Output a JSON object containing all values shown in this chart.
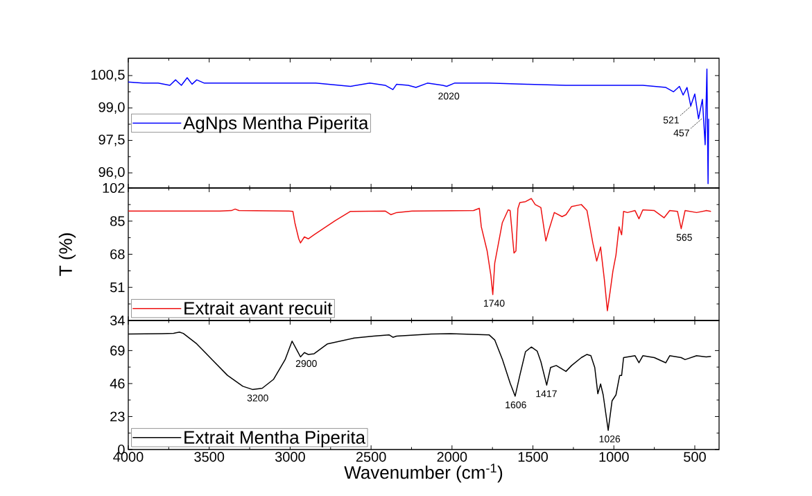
{
  "chart_data": [
    {
      "type": "line",
      "tick_labels": "y",
      "legend": "left",
      "xlim": [
        4000,
        350
      ],
      "xticks": [
        4000,
        3500,
        3000,
        2500,
        2000,
        1500,
        1000,
        500
      ],
      "ylim": [
        95.3,
        101.3
      ],
      "yticks": [
        {
          "value": 96.0,
          "label": "96,0"
        },
        {
          "value": 97.5,
          "label": "97,5"
        },
        {
          "value": 99.0,
          "label": "99,0"
        },
        {
          "value": 100.5,
          "label": "100,5"
        }
      ],
      "x": [
        4000,
        3910,
        3815,
        3743,
        3708,
        3672,
        3636,
        3606,
        3577,
        3530,
        3316,
        3078,
        2841,
        2627,
        2508,
        2413,
        2365,
        2342,
        2270,
        2223,
        2152,
        2057,
        2033,
        1985,
        1771,
        1534,
        1296,
        1059,
        821,
        679,
        631,
        595,
        572,
        548,
        525,
        500,
        477,
        453,
        436,
        425,
        418,
        414
      ],
      "series": [
        {
          "name": "AgNps Mentha Piperita",
          "color": "#0000ff",
          "values": [
            100.2,
            100.15,
            100.15,
            100.05,
            100.3,
            100.05,
            100.4,
            100.1,
            100.3,
            100.15,
            100.15,
            100.15,
            100.15,
            100.0,
            100.15,
            100.05,
            99.85,
            100.1,
            100.05,
            99.95,
            100.15,
            100.05,
            100.0,
            100.15,
            100.15,
            100.1,
            100.05,
            100.05,
            100.05,
            99.95,
            99.75,
            100.0,
            99.6,
            99.95,
            99.1,
            99.65,
            98.5,
            99.4,
            97.3,
            100.8,
            95.5,
            98.5
          ]
        }
      ],
      "annotations": [
        {
          "text": "2020",
          "x": 2020,
          "y": 99.95
        },
        {
          "text": "521",
          "x": 521,
          "y": 99.1
        },
        {
          "text": "457",
          "x": 457,
          "y": 98.5
        }
      ]
    },
    {
      "type": "line",
      "tick_labels": "y",
      "legend": "bottom left",
      "ylabel": "T (%)",
      "xlim": [
        4000,
        350
      ],
      "xticks": [
        4000,
        3500,
        3000,
        2500,
        2000,
        1500,
        1000,
        500
      ],
      "ylim": [
        34,
        102
      ],
      "yticks": [
        34,
        51,
        68,
        85,
        102
      ],
      "x": [
        4000,
        3435,
        3363,
        3340,
        3316,
        3007,
        2983,
        2971,
        2947,
        2936,
        2912,
        2888,
        2852,
        2722,
        2627,
        2413,
        2378,
        2342,
        2247,
        1867,
        1831,
        1819,
        1783,
        1760,
        1748,
        1736,
        1689,
        1653,
        1641,
        1617,
        1605,
        1593,
        1581,
        1546,
        1510,
        1486,
        1451,
        1420,
        1403,
        1368,
        1320,
        1296,
        1261,
        1201,
        1166,
        1130,
        1106,
        1082,
        1059,
        1040,
        1023,
        1006,
        987,
        968,
        952,
        940,
        916,
        869,
        845,
        821,
        750,
        690,
        655,
        607,
        584,
        560,
        489,
        429,
        400
      ],
      "series": [
        {
          "name": "Extrait avant recuit",
          "color": "#ee1111",
          "values": [
            90.2,
            90.2,
            90.4,
            91.2,
            90.4,
            90.2,
            90.0,
            84.2,
            75.9,
            73.8,
            76.9,
            75.9,
            78.0,
            85.2,
            90.0,
            90.2,
            88.3,
            89.4,
            90.2,
            90.4,
            91.6,
            82.1,
            69.7,
            57.2,
            47.3,
            63.4,
            84.2,
            90.8,
            90.4,
            68.6,
            69.7,
            91.4,
            94.5,
            95.0,
            96.6,
            93.5,
            92.0,
            74.8,
            80.0,
            89.4,
            87.3,
            88.3,
            92.5,
            93.5,
            90.4,
            73.8,
            64.5,
            71.7,
            55.2,
            39.0,
            48.9,
            59.3,
            67.6,
            82.1,
            78.0,
            90.0,
            89.4,
            90.4,
            86.2,
            90.8,
            90.4,
            86.7,
            90.4,
            90.0,
            81.1,
            90.4,
            89.4,
            90.4,
            90.0
          ]
        }
      ],
      "annotations": [
        {
          "text": "1740",
          "x": 1740,
          "y": 47.3
        },
        {
          "text": "565",
          "x": 565,
          "y": 81.1
        }
      ]
    },
    {
      "type": "line",
      "legend": "bottom left",
      "xlabel": "Wavenumber (cm$^{-1}$)",
      "xlim": [
        4000,
        350
      ],
      "xticks": [
        4000,
        3500,
        3000,
        2500,
        2000,
        1500,
        1000,
        500
      ],
      "ylim": [
        0,
        90
      ],
      "yticks": [
        0,
        23,
        46,
        69
      ],
      "x": [
        4000,
        3791,
        3720,
        3684,
        3660,
        3577,
        3482,
        3387,
        3292,
        3233,
        3173,
        3102,
        3031,
        2988,
        2959,
        2936,
        2912,
        2888,
        2852,
        2769,
        2603,
        2484,
        2389,
        2365,
        2342,
        2128,
        2009,
        1771,
        1736,
        1688,
        1641,
        1610,
        1581,
        1546,
        1510,
        1474,
        1451,
        1415,
        1391,
        1356,
        1296,
        1261,
        1201,
        1166,
        1142,
        1118,
        1099,
        1082,
        1066,
        1035,
        1011,
        987,
        964,
        952,
        940,
        869,
        845,
        821,
        750,
        679,
        655,
        584,
        560,
        489,
        429,
        400
      ],
      "series": [
        {
          "name": "Extrait Mentha Piperita",
          "color": "#000000",
          "values": [
            80.5,
            80.8,
            81.0,
            81.9,
            81.0,
            73.7,
            62.7,
            51.7,
            44.1,
            41.9,
            42.7,
            49.0,
            62.7,
            75.6,
            69.5,
            64.6,
            67.6,
            66.3,
            66.8,
            73.7,
            77.8,
            79.1,
            80.0,
            78.3,
            79.1,
            80.5,
            80.8,
            80.0,
            76.4,
            62.7,
            46.3,
            37.2,
            51.7,
            68.2,
            71.5,
            68.7,
            61.3,
            44.9,
            57.2,
            58.6,
            54.5,
            58.6,
            64.1,
            66.3,
            65.4,
            57.2,
            38.9,
            45.7,
            38.1,
            13.4,
            34.0,
            38.1,
            51.7,
            51.7,
            64.1,
            65.4,
            60.5,
            65.4,
            64.1,
            60.5,
            65.4,
            64.1,
            62.7,
            65.4,
            64.6,
            65.0
          ]
        }
      ],
      "annotations": [
        {
          "text": "3200",
          "x": 3200,
          "y": 42.0
        },
        {
          "text": "2900",
          "x": 2900,
          "y": 66.0
        },
        {
          "text": "1606",
          "x": 1606,
          "y": 37.2
        },
        {
          "text": "1417",
          "x": 1417,
          "y": 44.9
        },
        {
          "text": "1026",
          "x": 1026,
          "y": 13.4
        }
      ]
    }
  ]
}
